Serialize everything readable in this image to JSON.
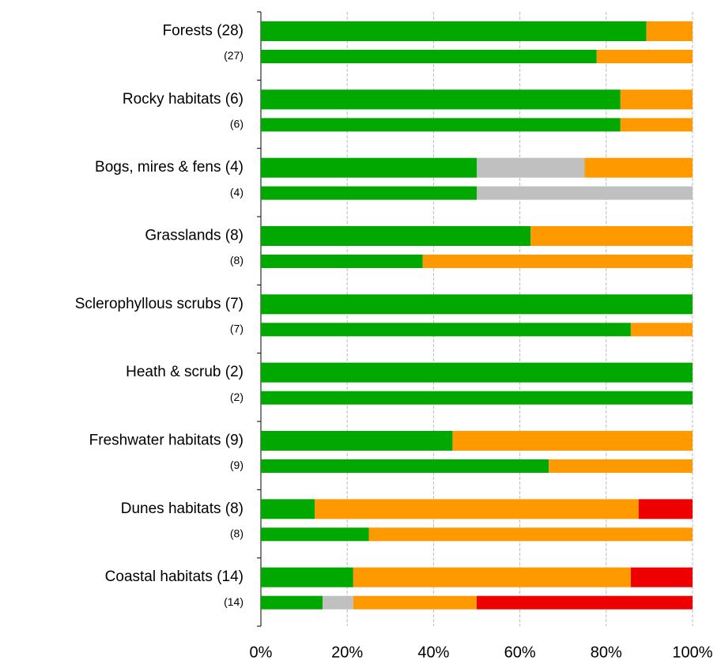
{
  "chart_data": {
    "type": "stacked-barh",
    "categories": [
      "Forests (28)",
      "(27)",
      "Rocky habitats (6)",
      "(6)",
      "Bogs, mires & fens (4)",
      "(4)",
      "Grasslands (8)",
      "(8)",
      "Sclerophyllous scrubs (7)",
      "(7)",
      "Heath & scrub (2)",
      "(2)",
      "Freshwater habitats (9)",
      "(9)",
      "Dunes habitats (8)",
      "(8)",
      "Coastal habitats (14)",
      "(14)"
    ],
    "series": [
      {
        "color": "#00a800",
        "values": [
          89.3,
          77.8,
          83.3,
          83.3,
          50,
          50,
          62.5,
          37.5,
          100,
          85.7,
          100,
          100,
          44.4,
          66.7,
          12.5,
          25,
          21.4,
          14.3
        ]
      },
      {
        "color": "#c0c0c0",
        "values": [
          0,
          0,
          0,
          0,
          25,
          50,
          0,
          0,
          0,
          0,
          0,
          0,
          0,
          0,
          0,
          0,
          0,
          7.1
        ]
      },
      {
        "color": "#ff9900",
        "values": [
          10.7,
          22.2,
          16.7,
          16.7,
          25,
          0,
          37.5,
          62.5,
          0,
          14.3,
          0,
          0,
          55.6,
          33.3,
          75,
          75,
          64.3,
          28.6
        ]
      },
      {
        "color": "#ee0000",
        "values": [
          0,
          0,
          0,
          0,
          0,
          0,
          0,
          0,
          0,
          0,
          0,
          0,
          0,
          0,
          12.5,
          0,
          14.3,
          50
        ]
      }
    ],
    "xlim": [
      0,
      100
    ],
    "xticks": [
      {
        "value": 0,
        "label": "0%"
      },
      {
        "value": 20,
        "label": "20%"
      },
      {
        "value": 40,
        "label": "40%"
      },
      {
        "value": 60,
        "label": "60%"
      },
      {
        "value": 80,
        "label": "80%"
      },
      {
        "value": 100,
        "label": "100%"
      }
    ],
    "grid": true
  }
}
